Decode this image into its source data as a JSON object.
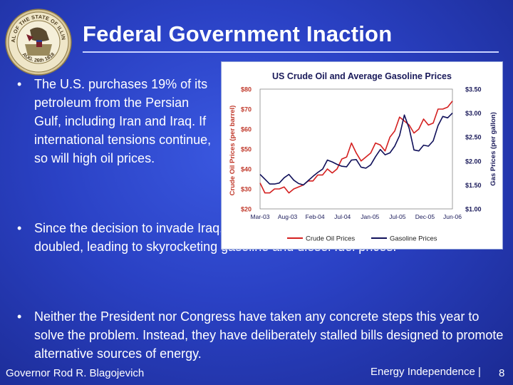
{
  "slide": {
    "title": "Federal Government Inaction",
    "bullet_char": "•",
    "bullets": [
      "The U.S. purchases 19% of its petroleum from the Persian Gulf, including Iran and Iraq.  If international tensions continue, so will high oil prices.",
      "Since the decision to invade Iraq, crude oil prices have more than doubled, leading to skyrocketing gasoline and diesel fuel prices.",
      "Neither the President nor Congress have taken any concrete steps this year to solve the problem. Instead, they have deliberately stalled bills designed to promote alternative sources of energy."
    ],
    "footer_left": "Governor Rod R. Blagojevich",
    "footer_right": "Energy Independence |",
    "page_number": "8"
  },
  "seal": {
    "text_top": "SEAL OF THE STATE OF ILLINOIS",
    "text_bottom": "AUG. 26th 1818"
  },
  "colors": {
    "background": "#2a41c4",
    "crude": "#d42020",
    "gas": "#10105a",
    "chart_text": "#c0392b",
    "chart_title": "#1a1a5a"
  },
  "chart_data": {
    "type": "line",
    "title": "US Crude Oil and Average Gasoline Prices",
    "x_ticks": [
      "Mar-03",
      "Aug-03",
      "Feb-04",
      "Jul-04",
      "Jan-05",
      "Jul-05",
      "Dec-05",
      "Jun-06"
    ],
    "ylabel_left": "Crude Oil Prices (per barrel)",
    "ylabel_right": "Gas Prices (per gallon)",
    "y_left": {
      "min": 20,
      "max": 80,
      "ticks": [
        "$20",
        "$30",
        "$40",
        "$50",
        "$60",
        "$70",
        "$80"
      ]
    },
    "y_right": {
      "min": 1.0,
      "max": 3.5,
      "ticks": [
        "$1.00",
        "$1.50",
        "$2.00",
        "$2.50",
        "$3.00",
        "$3.50"
      ]
    },
    "legend_position": "bottom",
    "series": [
      {
        "name": "Crude Oil Prices",
        "axis": "left",
        "x": [
          "Mar-03",
          "Apr-03",
          "May-03",
          "Jun-03",
          "Jul-03",
          "Aug-03",
          "Sep-03",
          "Oct-03",
          "Nov-03",
          "Dec-03",
          "Jan-04",
          "Feb-04",
          "Mar-04",
          "Apr-04",
          "May-04",
          "Jun-04",
          "Jul-04",
          "Aug-04",
          "Sep-04",
          "Oct-04",
          "Nov-04",
          "Dec-04",
          "Jan-05",
          "Feb-05",
          "Mar-05",
          "Apr-05",
          "May-05",
          "Jun-05",
          "Jul-05",
          "Aug-05",
          "Sep-05",
          "Oct-05",
          "Nov-05",
          "Dec-05",
          "Jan-06",
          "Feb-06",
          "Mar-06",
          "Apr-06",
          "May-06",
          "Jun-06",
          "Jul-06"
        ],
        "values": [
          33,
          28,
          28,
          30,
          30,
          31,
          28,
          30,
          31,
          32,
          34,
          34,
          37,
          37,
          40,
          38,
          40,
          45,
          46,
          53,
          48,
          44,
          46,
          48,
          53,
          52,
          49,
          56,
          59,
          66,
          64,
          62,
          58,
          60,
          65,
          62,
          63,
          70,
          70,
          71,
          74
        ]
      },
      {
        "name": "Gasoline Prices",
        "axis": "right",
        "x": [
          "Mar-03",
          "Apr-03",
          "May-03",
          "Jun-03",
          "Jul-03",
          "Aug-03",
          "Sep-03",
          "Oct-03",
          "Nov-03",
          "Dec-03",
          "Jan-04",
          "Feb-04",
          "Mar-04",
          "Apr-04",
          "May-04",
          "Jun-04",
          "Jul-04",
          "Aug-04",
          "Sep-04",
          "Oct-04",
          "Nov-04",
          "Dec-04",
          "Jan-05",
          "Feb-05",
          "Mar-05",
          "Apr-05",
          "May-05",
          "Jun-05",
          "Jul-05",
          "Aug-05",
          "Sep-05",
          "Oct-05",
          "Nov-05",
          "Dec-05",
          "Jan-06",
          "Feb-06",
          "Mar-06",
          "Apr-06",
          "May-06",
          "Jun-06",
          "Jul-06"
        ],
        "values": [
          1.72,
          1.62,
          1.52,
          1.52,
          1.54,
          1.65,
          1.72,
          1.6,
          1.53,
          1.5,
          1.59,
          1.68,
          1.76,
          1.83,
          2.02,
          1.98,
          1.93,
          1.89,
          1.88,
          2.02,
          2.03,
          1.87,
          1.85,
          1.92,
          2.09,
          2.24,
          2.13,
          2.17,
          2.31,
          2.53,
          2.96,
          2.68,
          2.23,
          2.21,
          2.33,
          2.31,
          2.42,
          2.74,
          2.93,
          2.9,
          3.0
        ]
      }
    ]
  }
}
